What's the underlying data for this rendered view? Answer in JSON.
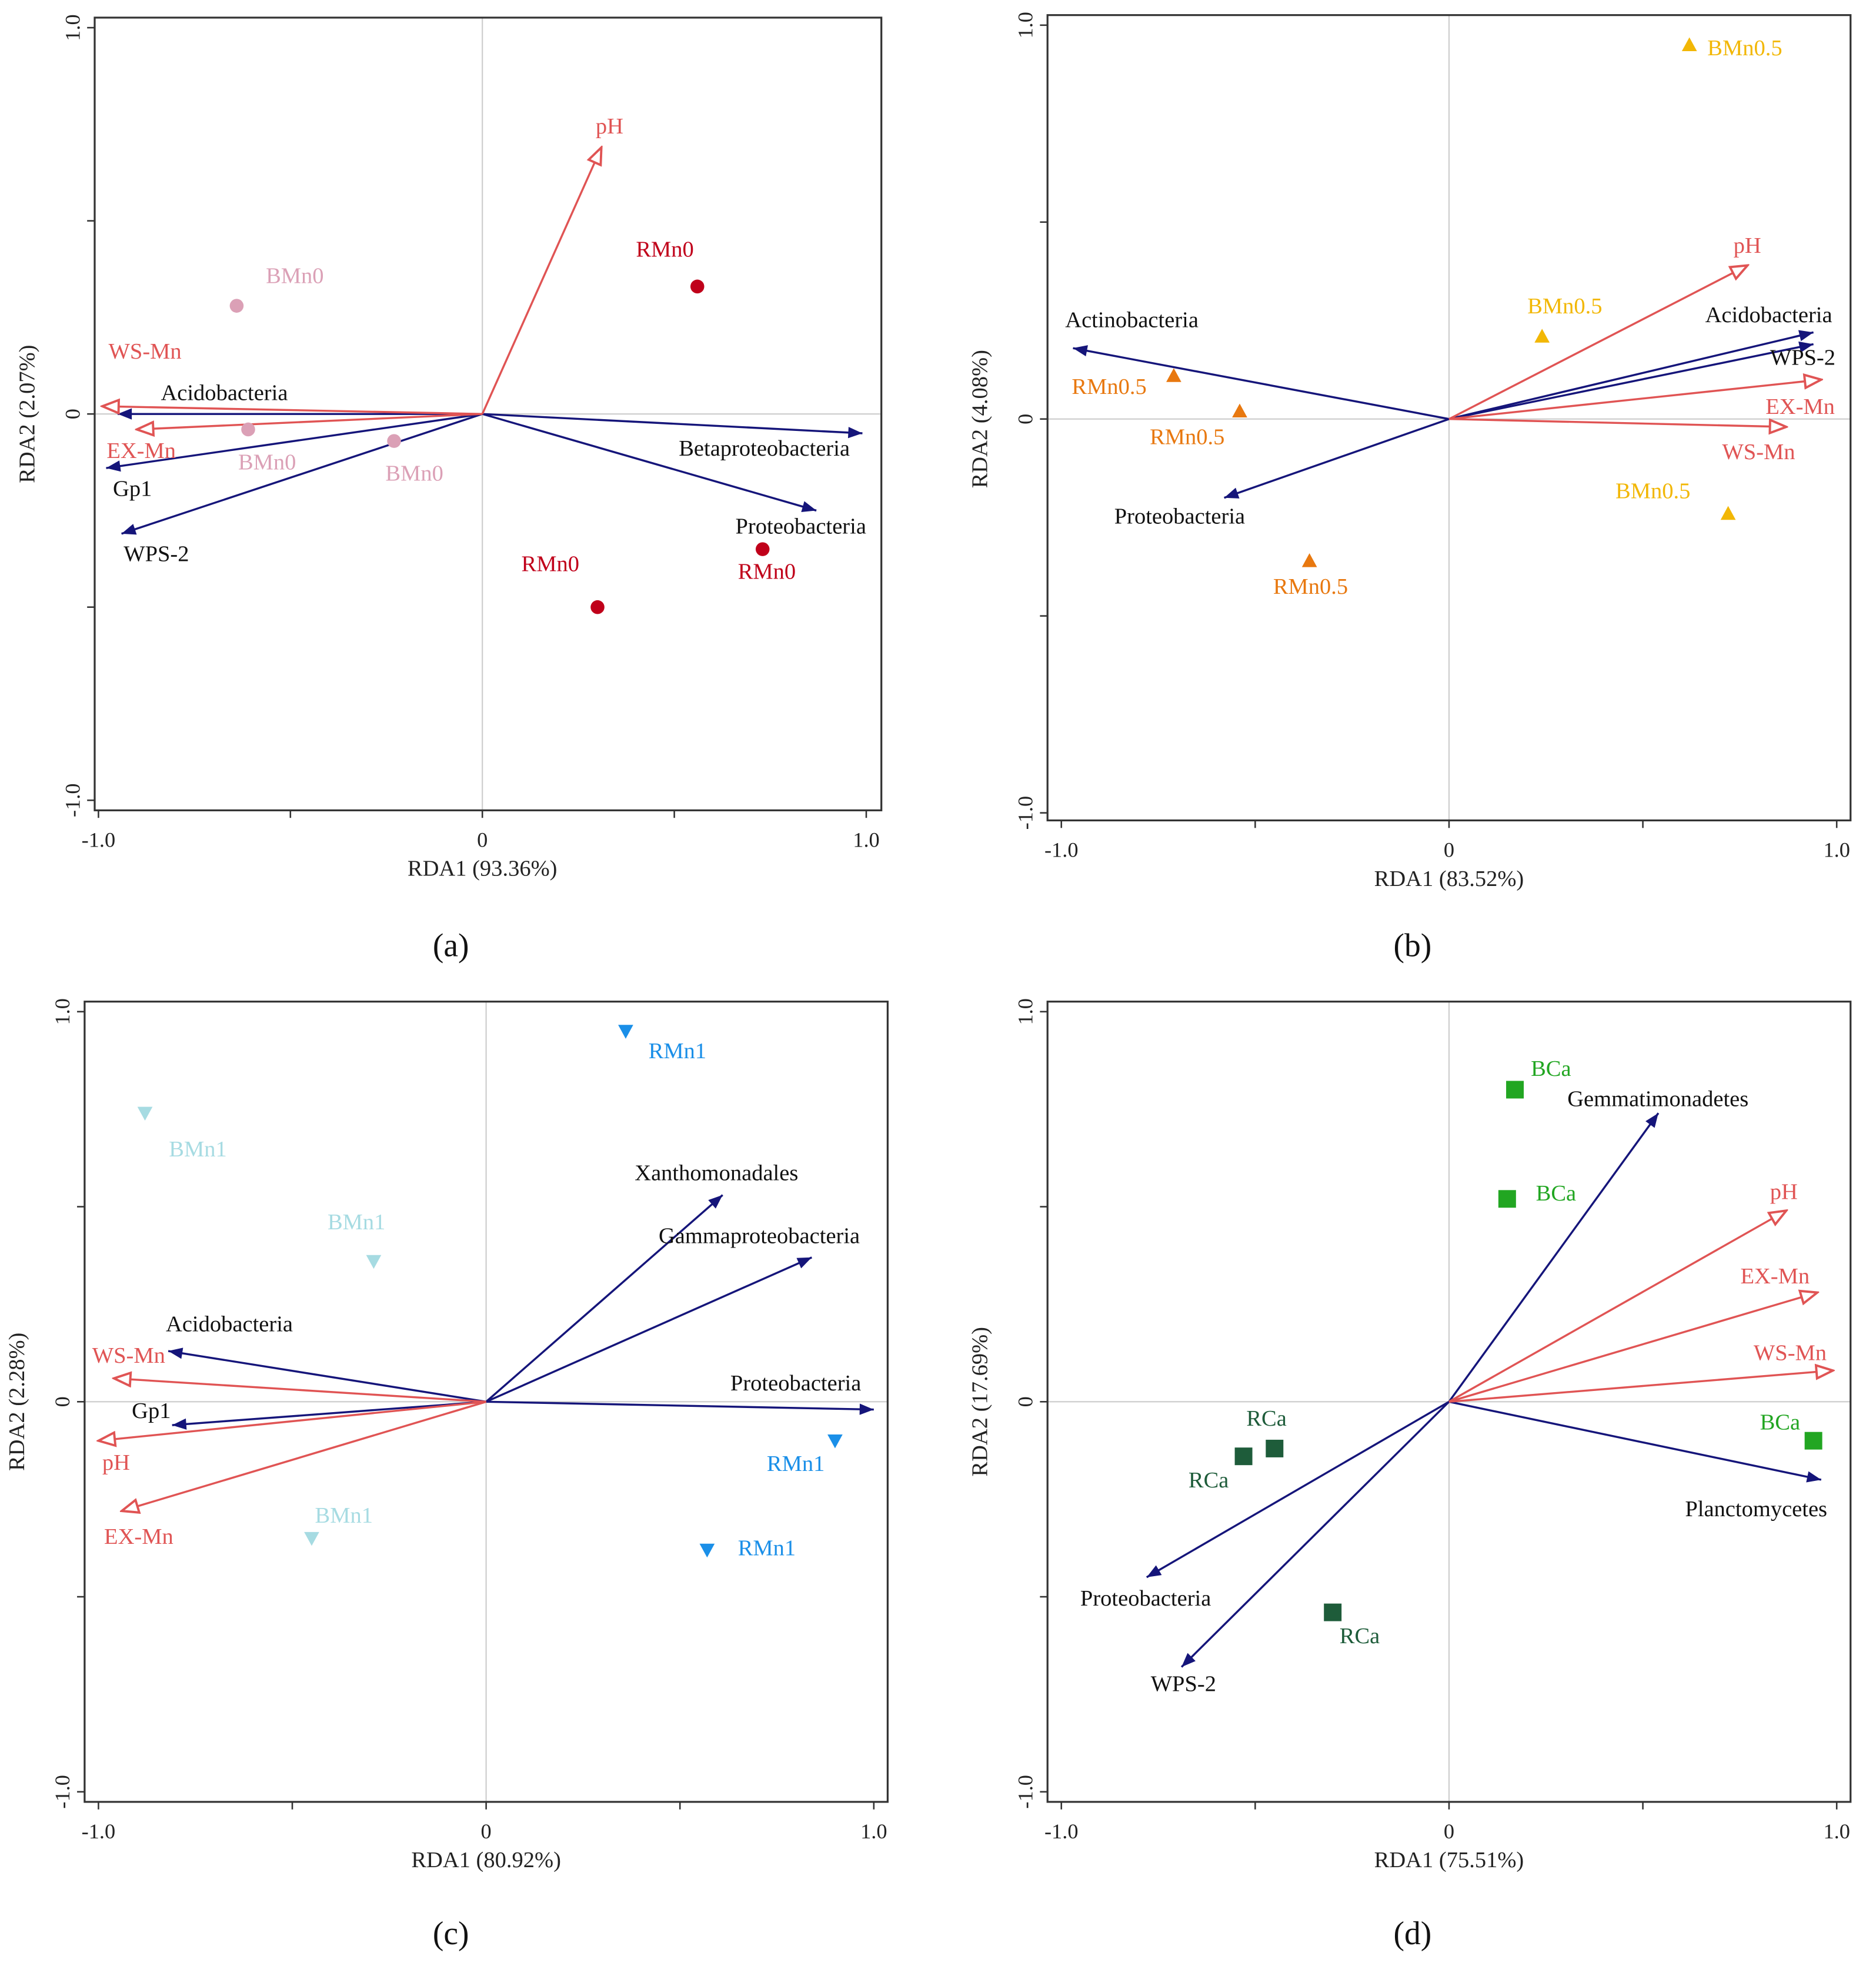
{
  "chart_data": [
    {
      "type": "scatter",
      "panel_label": "(a)",
      "xlabel": "RDA1 (93.36%)",
      "ylabel": "RDA2 (2.07%)",
      "xlim": [
        -1.0,
        1.0
      ],
      "ylim": [
        -1.0,
        1.0
      ],
      "xticklabels": [
        "-1.0",
        "0",
        "1.0"
      ],
      "yticklabels": [
        "-1.0",
        "0",
        "1.0"
      ],
      "env_arrows": [
        {
          "name": "pH",
          "x": 0.31,
          "y": 0.69
        },
        {
          "name": "WS-Mn",
          "x": -0.99,
          "y": 0.02
        },
        {
          "name": "EX-Mn",
          "x": -0.9,
          "y": -0.04
        }
      ],
      "species_arrows": [
        {
          "name": "Acidobacteria",
          "x": -0.95,
          "y": 0.0
        },
        {
          "name": "Gp1",
          "x": -0.98,
          "y": -0.14
        },
        {
          "name": "WPS-2",
          "x": -0.94,
          "y": -0.31
        },
        {
          "name": "Betaproteobacteria",
          "x": 0.99,
          "y": -0.05
        },
        {
          "name": "Proteobacteria",
          "x": 0.87,
          "y": -0.25
        }
      ],
      "samples": [
        {
          "label": "BMn0",
          "x": -0.64,
          "y": 0.28,
          "color": "#dba0b6",
          "marker": "circle"
        },
        {
          "label": "BMn0",
          "x": -0.61,
          "y": -0.04,
          "color": "#dba0b6",
          "marker": "circle"
        },
        {
          "label": "BMn0",
          "x": -0.23,
          "y": -0.07,
          "color": "#dba0b6",
          "marker": "circle"
        },
        {
          "label": "RMn0",
          "x": 0.56,
          "y": 0.33,
          "color": "#c0001a",
          "marker": "circle"
        },
        {
          "label": "RMn0",
          "x": 0.3,
          "y": -0.5,
          "color": "#c0001a",
          "marker": "circle"
        },
        {
          "label": "RMn0",
          "x": 0.73,
          "y": -0.35,
          "color": "#c0001a",
          "marker": "circle"
        }
      ]
    },
    {
      "type": "scatter",
      "panel_label": "(b)",
      "xlabel": "RDA1 (83.52%)",
      "ylabel": "RDA2 (4.08%)",
      "xlim": [
        -1.0,
        1.0
      ],
      "ylim": [
        -1.0,
        1.0
      ],
      "xticklabels": [
        "-1.0",
        "0",
        "1.0"
      ],
      "yticklabels": [
        "-1.0",
        "0",
        "1.0"
      ],
      "env_arrows": [
        {
          "name": "pH",
          "x": 0.77,
          "y": 0.39
        },
        {
          "name": "EX-Mn",
          "x": 0.96,
          "y": 0.1
        },
        {
          "name": "WS-Mn",
          "x": 0.87,
          "y": -0.02
        }
      ],
      "species_arrows": [
        {
          "name": "Acidobacteria",
          "x": 0.94,
          "y": 0.22
        },
        {
          "name": "WPS-2",
          "x": 0.94,
          "y": 0.19
        },
        {
          "name": "Actinobacteria",
          "x": -0.97,
          "y": 0.18
        },
        {
          "name": "Proteobacteria",
          "x": -0.58,
          "y": -0.2
        }
      ],
      "samples": [
        {
          "label": "BMn0.5",
          "x": 0.62,
          "y": 0.95,
          "color": "#f2b705",
          "marker": "triangle-up"
        },
        {
          "label": "BMn0.5",
          "x": 0.24,
          "y": 0.21,
          "color": "#f2b705",
          "marker": "triangle-up"
        },
        {
          "label": "BMn0.5",
          "x": 0.72,
          "y": -0.24,
          "color": "#f2b705",
          "marker": "triangle-up"
        },
        {
          "label": "RMn0.5",
          "x": -0.71,
          "y": 0.11,
          "color": "#e8780f",
          "marker": "triangle-up"
        },
        {
          "label": "RMn0.5",
          "x": -0.54,
          "y": 0.02,
          "color": "#e8780f",
          "marker": "triangle-up"
        },
        {
          "label": "RMn0.5",
          "x": -0.36,
          "y": -0.36,
          "color": "#e8780f",
          "marker": "triangle-up"
        }
      ]
    },
    {
      "type": "scatter",
      "panel_label": "(c)",
      "xlabel": "RDA1 (80.92%)",
      "ylabel": "RDA2 (2.28%)",
      "xlim": [
        -1.0,
        1.0
      ],
      "ylim": [
        -1.0,
        1.0
      ],
      "xticklabels": [
        "-1.0",
        "0",
        "1.0"
      ],
      "yticklabels": [
        "-1.0",
        "0",
        "1.0"
      ],
      "env_arrows": [
        {
          "name": "WS-Mn",
          "x": -0.96,
          "y": 0.06
        },
        {
          "name": "pH",
          "x": -1.0,
          "y": -0.1
        },
        {
          "name": "EX-Mn",
          "x": -0.94,
          "y": -0.28
        }
      ],
      "species_arrows": [
        {
          "name": "Acidobacteria",
          "x": -0.82,
          "y": 0.13
        },
        {
          "name": "Gp1",
          "x": -0.81,
          "y": -0.06
        },
        {
          "name": "Xanthomonadales",
          "x": 0.61,
          "y": 0.53
        },
        {
          "name": "Gammaproteobacteria",
          "x": 0.84,
          "y": 0.37
        },
        {
          "name": "Proteobacteria",
          "x": 1.0,
          "y": -0.02
        }
      ],
      "samples": [
        {
          "label": "BMn1",
          "x": -0.88,
          "y": 0.74,
          "color": "#a6dbe2",
          "marker": "triangle-down"
        },
        {
          "label": "BMn1",
          "x": -0.29,
          "y": 0.36,
          "color": "#a6dbe2",
          "marker": "triangle-down"
        },
        {
          "label": "BMn1",
          "x": -0.45,
          "y": -0.35,
          "color": "#a6dbe2",
          "marker": "triangle-down"
        },
        {
          "label": "RMn1",
          "x": 0.36,
          "y": 0.95,
          "color": "#1a8fe8",
          "marker": "triangle-down"
        },
        {
          "label": "RMn1",
          "x": 0.9,
          "y": -0.1,
          "color": "#1a8fe8",
          "marker": "triangle-down"
        },
        {
          "label": "RMn1",
          "x": 0.57,
          "y": -0.38,
          "color": "#1a8fe8",
          "marker": "triangle-down"
        }
      ]
    },
    {
      "type": "scatter",
      "panel_label": "(d)",
      "xlabel": "RDA1 (75.51%)",
      "ylabel": "RDA2 (17.69%)",
      "xlim": [
        -1.0,
        1.0
      ],
      "ylim": [
        -1.0,
        1.0
      ],
      "xticklabels": [
        "-1.0",
        "0",
        "1.0"
      ],
      "yticklabels": [
        "-1.0",
        "0",
        "1.0"
      ],
      "env_arrows": [
        {
          "name": "pH",
          "x": 0.87,
          "y": 0.49
        },
        {
          "name": "EX-Mn",
          "x": 0.95,
          "y": 0.28
        },
        {
          "name": "WS-Mn",
          "x": 0.99,
          "y": 0.08
        }
      ],
      "species_arrows": [
        {
          "name": "Gemmatimonadetes",
          "x": 0.54,
          "y": 0.74
        },
        {
          "name": "Planctomycetes",
          "x": 0.96,
          "y": -0.2
        },
        {
          "name": "Proteobacteria",
          "x": -0.78,
          "y": -0.45
        },
        {
          "name": "WPS-2",
          "x": -0.69,
          "y": -0.68
        }
      ],
      "samples": [
        {
          "label": "BCa",
          "x": 0.17,
          "y": 0.8,
          "color": "#22a622",
          "marker": "square"
        },
        {
          "label": "BCa",
          "x": 0.15,
          "y": 0.52,
          "color": "#22a622",
          "marker": "square"
        },
        {
          "label": "BCa",
          "x": 0.94,
          "y": -0.1,
          "color": "#22a622",
          "marker": "square"
        },
        {
          "label": "RCa",
          "x": -0.53,
          "y": -0.14,
          "color": "#1e5c3a",
          "marker": "square"
        },
        {
          "label": "RCa",
          "x": -0.45,
          "y": -0.12,
          "color": "#1e5c3a",
          "marker": "square"
        },
        {
          "label": "RCa",
          "x": -0.3,
          "y": -0.54,
          "color": "#1e5c3a",
          "marker": "square"
        }
      ]
    }
  ],
  "colors": {
    "env": "#e05454",
    "species": "#15157a",
    "axis": "#333333",
    "zero_line": "#cccccc"
  }
}
